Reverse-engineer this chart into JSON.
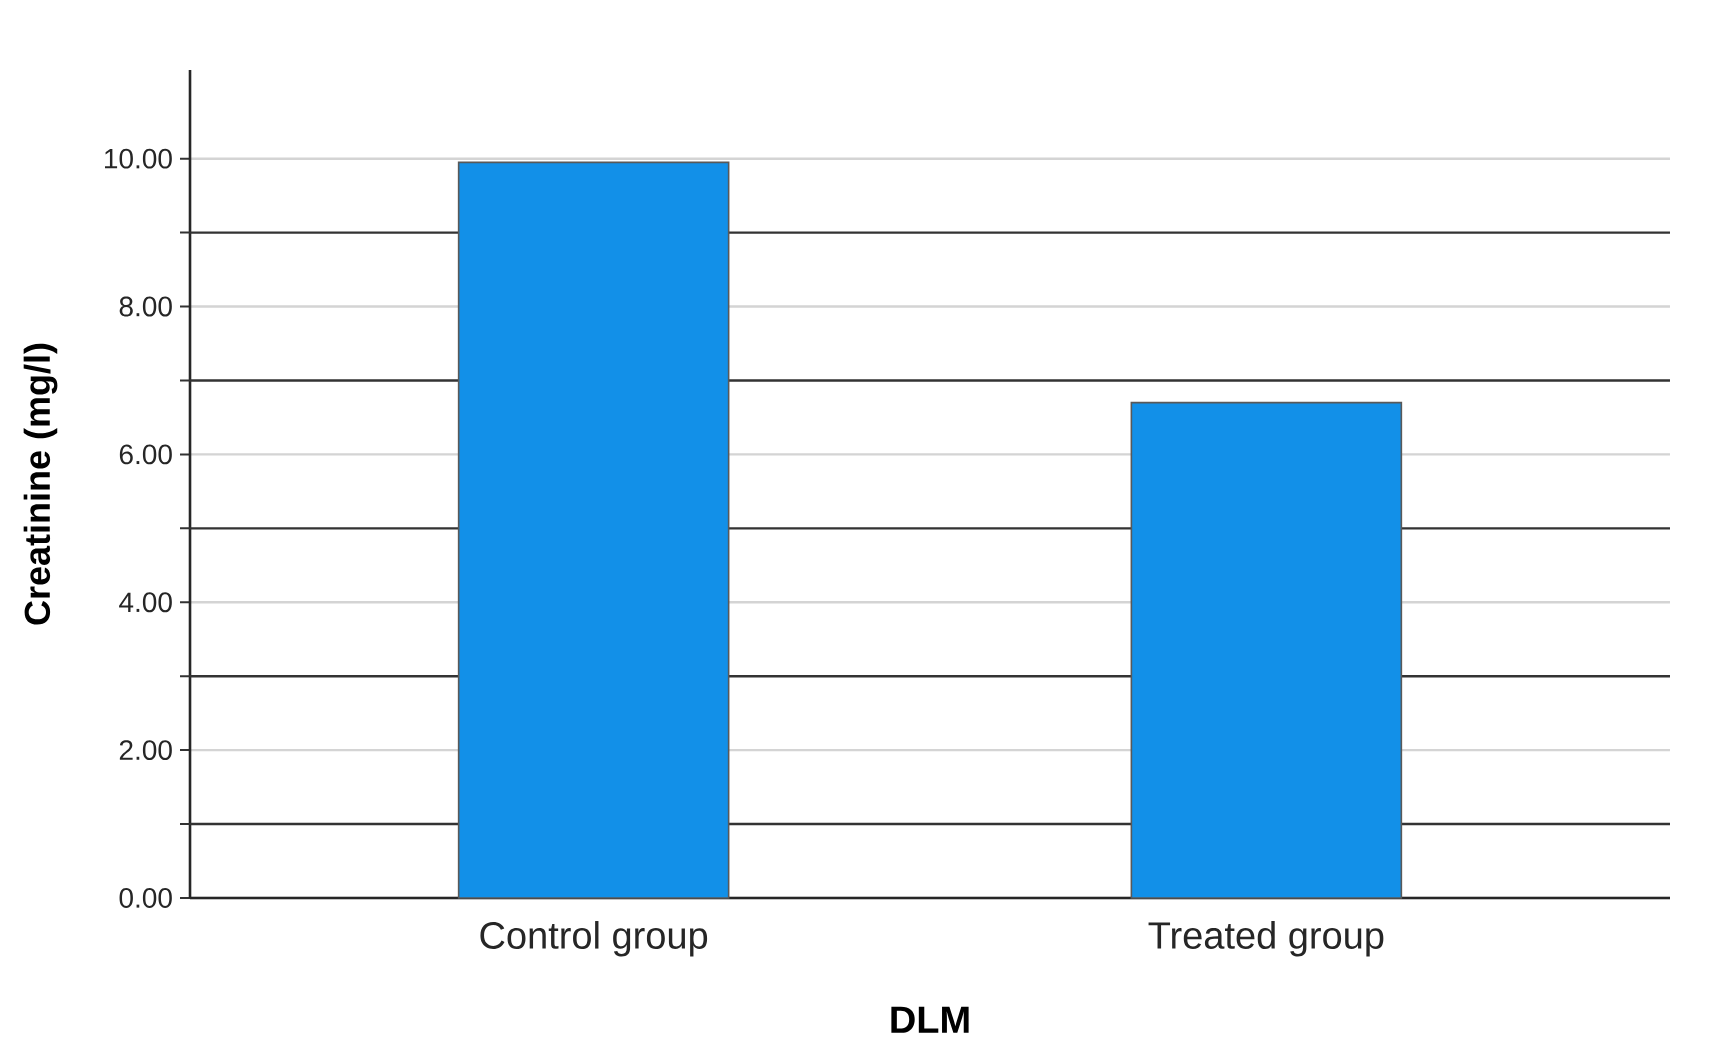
{
  "chart_data": {
    "type": "bar",
    "xlabel": "DLM",
    "ylabel": "Creatinine (mg/l)",
    "categories": [
      "Control group",
      "Treated group"
    ],
    "values": [
      9.95,
      6.7
    ],
    "color": "#1290e8",
    "ylim": [
      0,
      11.2
    ],
    "yticks": [
      {
        "value": 0,
        "label": "0.00"
      },
      {
        "value": 1,
        "label": null
      },
      {
        "value": 2,
        "label": "2.00"
      },
      {
        "value": 3,
        "label": null
      },
      {
        "value": 4,
        "label": "4.00"
      },
      {
        "value": 5,
        "label": null
      },
      {
        "value": 6,
        "label": "6.00"
      },
      {
        "value": 7,
        "label": null
      },
      {
        "value": 8,
        "label": "8.00"
      },
      {
        "value": 9,
        "label": null
      },
      {
        "value": 10,
        "label": "10.00"
      }
    ],
    "grid": "y"
  }
}
